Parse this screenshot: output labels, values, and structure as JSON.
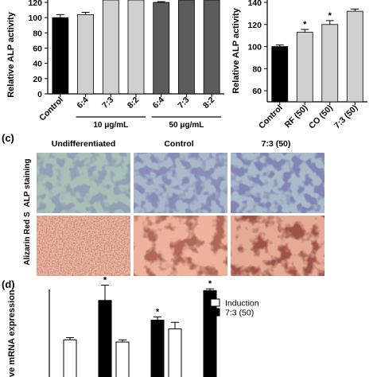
{
  "panels": {
    "c_label": "(c)",
    "d_label": "(d)",
    "c_columns": [
      "Undifferentiated",
      "Control",
      "7:3 (50)"
    ],
    "c_rows": [
      "ALP staining",
      "Alizarin Red S"
    ]
  },
  "chart_data": [
    {
      "type": "bar",
      "ylabel": "Relative ALP activity",
      "ylim": [
        0,
        120
      ],
      "yticks": [
        0,
        20,
        40,
        60,
        80,
        100,
        120
      ],
      "categories": [
        "Control",
        "6:4",
        "7:3",
        "8:2",
        "6:4",
        "7:3",
        "8:2"
      ],
      "values": [
        100,
        104,
        125,
        125,
        120,
        125,
        125
      ],
      "errors": [
        4,
        3,
        0,
        0,
        1,
        0,
        0
      ],
      "colors": [
        "#000000",
        "#d0d0d0",
        "#d0d0d0",
        "#d0d0d0",
        "#5c5c5c",
        "#5c5c5c",
        "#5c5c5c"
      ],
      "groups": [
        {
          "label": "10 μg/mL",
          "categories": [
            "6:4",
            "7:3",
            "8:2"
          ]
        },
        {
          "label": "50 μg/mL",
          "categories": [
            "6:4",
            "7:3",
            "8:2"
          ]
        }
      ]
    },
    {
      "type": "bar",
      "ylabel": "Relative ALP activity",
      "ylim": [
        50,
        140
      ],
      "yticks": [
        60,
        80,
        100,
        120,
        140
      ],
      "categories": [
        "Control",
        "RF (50)",
        "CO (50)",
        "7:3 (50)"
      ],
      "values": [
        100,
        113,
        120,
        132
      ],
      "errors": [
        1.5,
        2.5,
        3.5,
        2
      ],
      "significance": [
        "",
        "*",
        "*",
        ""
      ],
      "colors": [
        "#000000",
        "#d0d0d0",
        "#d0d0d0",
        "#d0d0d0"
      ]
    },
    {
      "type": "bar",
      "ylabel": "ve mRNA expression",
      "series": [
        {
          "name": "Induction",
          "color": "#ffffff",
          "values": [
            1.7,
            1.6,
            2.2
          ],
          "errors": [
            0.1,
            0.1,
            0.3
          ]
        },
        {
          "name": "7:3 (50)",
          "color": "#000000",
          "values": [
            3.5,
            2.6,
            3.95
          ],
          "errors": [
            0.7,
            0.15,
            0.08
          ],
          "significance": [
            "*",
            "*",
            "*"
          ]
        }
      ]
    }
  ]
}
